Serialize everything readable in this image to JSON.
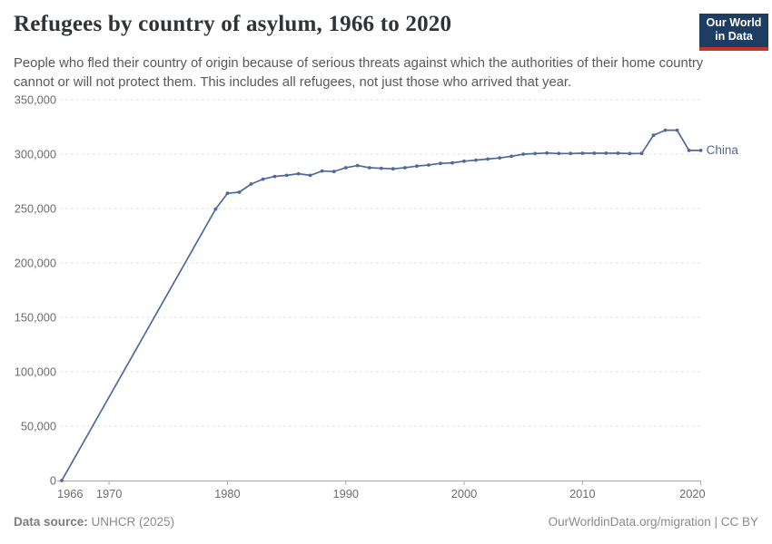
{
  "header": {
    "title": "Refugees by country of asylum, 1966 to 2020",
    "subtitle": "People who fled their country of origin because of serious threats against which the authorities of their home country cannot or will not protect them. This includes all refugees, not just those who arrived that year."
  },
  "logo": {
    "line1": "Our World",
    "line2": "in Data",
    "bg_color": "#1d3d63",
    "stripe_color": "#c5332b"
  },
  "footer": {
    "source_label": "Data source:",
    "source_value": " UNHCR (2025)",
    "right_text": "OurWorldinData.org/migration | CC BY"
  },
  "chart_data": {
    "type": "line",
    "title": "Refugees by country of asylum, 1966 to 2020",
    "xlabel": "",
    "ylabel": "",
    "xlim": [
      1966,
      2020
    ],
    "ylim": [
      0,
      350000
    ],
    "grid": true,
    "legend_position": "end-of-line",
    "color": "#4C6A9C",
    "y_ticks": [
      {
        "value": 0,
        "label": "0"
      },
      {
        "value": 50000,
        "label": "50,000"
      },
      {
        "value": 100000,
        "label": "100,000"
      },
      {
        "value": 150000,
        "label": "150,000"
      },
      {
        "value": 200000,
        "label": "200,000"
      },
      {
        "value": 250000,
        "label": "250,000"
      },
      {
        "value": 300000,
        "label": "300,000"
      },
      {
        "value": 350000,
        "label": "350,000"
      }
    ],
    "x_ticks": [
      {
        "value": 1966,
        "label": "1966",
        "tick": false
      },
      {
        "value": 1970,
        "label": "1970",
        "tick": true
      },
      {
        "value": 1980,
        "label": "1980",
        "tick": true
      },
      {
        "value": 1990,
        "label": "1990",
        "tick": true
      },
      {
        "value": 2000,
        "label": "2000",
        "tick": true
      },
      {
        "value": 2010,
        "label": "2010",
        "tick": true
      },
      {
        "value": 2020,
        "label": "2020",
        "tick": true
      }
    ],
    "series": [
      {
        "name": "China",
        "points": [
          [
            1966,
            0
          ],
          [
            1979,
            249500
          ],
          [
            1980,
            264000
          ],
          [
            1981,
            265000
          ],
          [
            1982,
            272500
          ],
          [
            1983,
            277000
          ],
          [
            1984,
            279500
          ],
          [
            1985,
            280500
          ],
          [
            1986,
            282000
          ],
          [
            1987,
            280500
          ],
          [
            1988,
            284500
          ],
          [
            1989,
            284000
          ],
          [
            1990,
            287500
          ],
          [
            1991,
            289500
          ],
          [
            1992,
            287500
          ],
          [
            1993,
            287000
          ],
          [
            1994,
            286500
          ],
          [
            1995,
            287500
          ],
          [
            1996,
            289000
          ],
          [
            1997,
            290000
          ],
          [
            1998,
            291500
          ],
          [
            1999,
            292000
          ],
          [
            2000,
            293500
          ],
          [
            2001,
            294500
          ],
          [
            2002,
            295500
          ],
          [
            2003,
            296500
          ],
          [
            2004,
            298000
          ],
          [
            2005,
            300000
          ],
          [
            2006,
            300500
          ],
          [
            2007,
            301000
          ],
          [
            2008,
            300600
          ],
          [
            2009,
            300600
          ],
          [
            2010,
            300800
          ],
          [
            2011,
            300800
          ],
          [
            2012,
            300800
          ],
          [
            2013,
            300800
          ],
          [
            2014,
            300500
          ],
          [
            2015,
            300700
          ],
          [
            2016,
            317300
          ],
          [
            2017,
            322000
          ],
          [
            2018,
            322000
          ],
          [
            2019,
            303400
          ],
          [
            2020,
            303400
          ]
        ]
      }
    ]
  }
}
